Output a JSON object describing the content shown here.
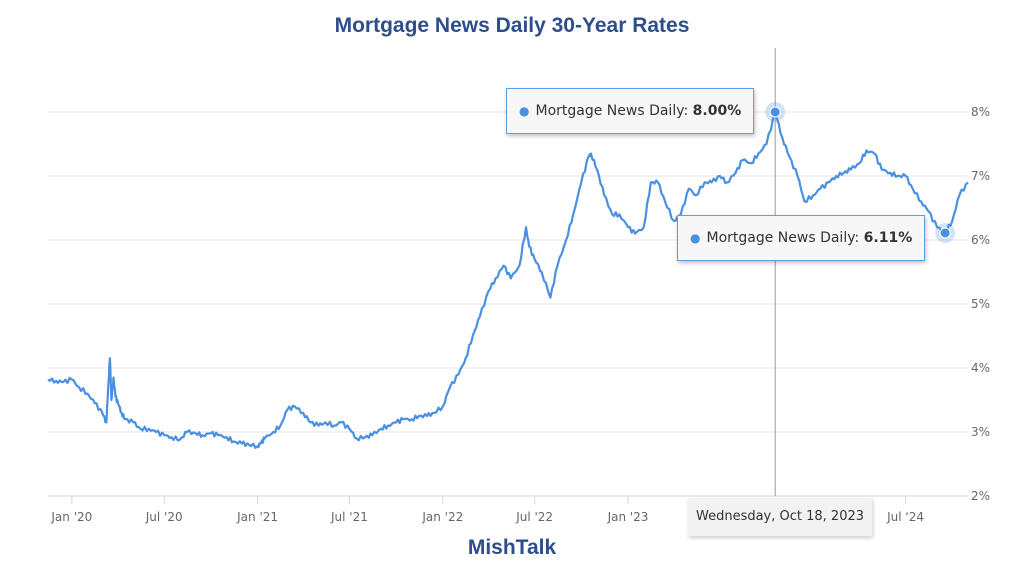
{
  "title": "Mortgage News Daily 30-Year Rates",
  "credit": "MishTalk",
  "colors": {
    "line": "#4a90e2",
    "title": "#2e4d8c",
    "grid": "#e6e6e6"
  },
  "tooltips": {
    "peak": {
      "series": "Mortgage News Daily",
      "value": "8.00%"
    },
    "end": {
      "series": "Mortgage News Daily",
      "value": "6.11%"
    }
  },
  "crosshair_label": "Wednesday, Oct 18, 2023",
  "chart_data": {
    "type": "line",
    "title": "Mortgage News Daily 30-Year Rates",
    "xlabel": "",
    "ylabel": "",
    "y_axis_position": "right",
    "ylim": [
      2,
      8.5
    ],
    "grid": true,
    "legend": "none",
    "x_tick_labels": [
      "Jan '20",
      "Jul '20",
      "Jan '21",
      "Jul '21",
      "Jan '22",
      "Jul '22",
      "Jan '23",
      "Jul '24"
    ],
    "x_tick_dates": [
      "2020-01-01",
      "2020-07-01",
      "2021-01-01",
      "2021-07-01",
      "2022-01-01",
      "2022-07-01",
      "2023-01-01",
      "2024-07-01"
    ],
    "y_ticks": [
      {
        "value": 2,
        "label": "2%"
      },
      {
        "value": 3,
        "label": "3%"
      },
      {
        "value": 4,
        "label": "4%"
      },
      {
        "value": 5,
        "label": "5%"
      },
      {
        "value": 6,
        "label": "6%"
      },
      {
        "value": 7,
        "label": "7%"
      },
      {
        "value": 8,
        "label": "8%"
      }
    ],
    "highlighted_points": [
      {
        "date": "2023-10-18",
        "value": 8.0
      },
      {
        "date": "2024-09-17",
        "value": 6.11
      }
    ],
    "series": [
      {
        "name": "Mortgage News Daily",
        "x": [
          "2019-11-15",
          "2019-12-01",
          "2019-12-15",
          "2020-01-01",
          "2020-01-15",
          "2020-02-01",
          "2020-02-15",
          "2020-03-01",
          "2020-03-09",
          "2020-03-12",
          "2020-03-16",
          "2020-03-19",
          "2020-03-23",
          "2020-03-27",
          "2020-04-01",
          "2020-04-08",
          "2020-04-15",
          "2020-05-01",
          "2020-05-15",
          "2020-06-01",
          "2020-06-15",
          "2020-07-01",
          "2020-07-15",
          "2020-08-01",
          "2020-08-15",
          "2020-09-01",
          "2020-09-15",
          "2020-10-01",
          "2020-10-15",
          "2020-11-01",
          "2020-11-15",
          "2020-12-01",
          "2020-12-15",
          "2021-01-01",
          "2021-01-08",
          "2021-01-15",
          "2021-02-01",
          "2021-02-15",
          "2021-03-01",
          "2021-03-15",
          "2021-04-01",
          "2021-04-15",
          "2021-05-01",
          "2021-05-15",
          "2021-06-01",
          "2021-06-15",
          "2021-07-01",
          "2021-07-15",
          "2021-08-01",
          "2021-08-15",
          "2021-09-01",
          "2021-09-15",
          "2021-10-01",
          "2021-10-15",
          "2021-11-01",
          "2021-11-15",
          "2021-12-01",
          "2021-12-15",
          "2022-01-01",
          "2022-01-15",
          "2022-02-01",
          "2022-02-15",
          "2022-03-01",
          "2022-03-15",
          "2022-04-01",
          "2022-04-15",
          "2022-05-01",
          "2022-05-15",
          "2022-06-01",
          "2022-06-14",
          "2022-06-20",
          "2022-07-01",
          "2022-07-15",
          "2022-08-01",
          "2022-08-15",
          "2022-09-01",
          "2022-09-15",
          "2022-10-01",
          "2022-10-15",
          "2022-10-20",
          "2022-11-01",
          "2022-11-15",
          "2022-12-01",
          "2022-12-15",
          "2023-01-01",
          "2023-01-15",
          "2023-02-01",
          "2023-02-15",
          "2023-03-01",
          "2023-03-15",
          "2023-04-01",
          "2023-04-15",
          "2023-05-01",
          "2023-05-15",
          "2023-06-01",
          "2023-06-15",
          "2023-07-01",
          "2023-07-15",
          "2023-08-01",
          "2023-08-15",
          "2023-09-01",
          "2023-09-15",
          "2023-10-01",
          "2023-10-18",
          "2023-11-01",
          "2023-11-15",
          "2023-12-01",
          "2023-12-15",
          "2024-01-01",
          "2024-01-15",
          "2024-02-01",
          "2024-02-15",
          "2024-03-01",
          "2024-03-15",
          "2024-04-01",
          "2024-04-15",
          "2024-05-01",
          "2024-05-15",
          "2024-06-01",
          "2024-06-15",
          "2024-07-01",
          "2024-07-15",
          "2024-08-01",
          "2024-08-15",
          "2024-09-01",
          "2024-09-17",
          "2024-10-01",
          "2024-10-15",
          "2024-11-01"
        ],
        "values": [
          3.82,
          3.8,
          3.78,
          3.82,
          3.7,
          3.6,
          3.45,
          3.3,
          3.15,
          3.6,
          4.15,
          3.5,
          3.85,
          3.55,
          3.45,
          3.3,
          3.2,
          3.15,
          3.05,
          3.05,
          3.0,
          2.95,
          2.92,
          2.88,
          3.0,
          2.98,
          2.95,
          2.98,
          2.95,
          2.92,
          2.85,
          2.82,
          2.8,
          2.78,
          2.83,
          2.9,
          3.0,
          3.1,
          3.35,
          3.4,
          3.3,
          3.15,
          3.1,
          3.15,
          3.1,
          3.15,
          3.05,
          2.9,
          2.92,
          2.95,
          3.05,
          3.1,
          3.15,
          3.2,
          3.2,
          3.25,
          3.25,
          3.3,
          3.4,
          3.7,
          3.9,
          4.15,
          4.5,
          4.8,
          5.2,
          5.4,
          5.6,
          5.4,
          5.6,
          6.2,
          5.9,
          5.7,
          5.5,
          5.1,
          5.6,
          6.0,
          6.4,
          6.9,
          7.3,
          7.35,
          7.1,
          6.7,
          6.4,
          6.4,
          6.2,
          6.1,
          6.2,
          6.9,
          6.9,
          6.6,
          6.3,
          6.4,
          6.8,
          6.7,
          6.9,
          6.9,
          7.0,
          6.9,
          7.05,
          7.25,
          7.2,
          7.35,
          7.5,
          8.0,
          7.6,
          7.3,
          7.0,
          6.6,
          6.7,
          6.8,
          6.9,
          7.0,
          7.05,
          7.1,
          7.2,
          7.4,
          7.35,
          7.1,
          7.05,
          7.0,
          7.0,
          6.8,
          6.6,
          6.45,
          6.2,
          6.11,
          6.3,
          6.7,
          6.9
        ]
      }
    ]
  }
}
